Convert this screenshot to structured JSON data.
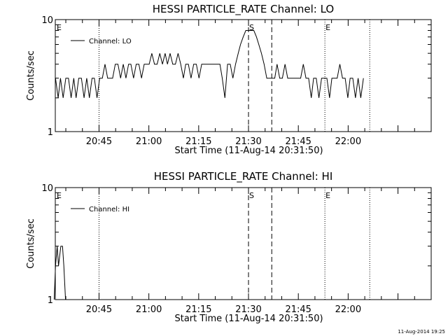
{
  "footer": {
    "timestamp": "11-Aug-2014 19:25"
  },
  "chart_data": [
    {
      "type": "line",
      "title": "HESSI PARTICLE_RATE Channel: LO",
      "xlabel": "Start Time (11-Aug-14 20:31:50)",
      "ylabel": "Counts/sec",
      "y_scale": "log",
      "ylim": [
        1,
        10
      ],
      "y_ticklabels": [
        "1",
        "10"
      ],
      "x_range_minutes": [
        "20:31:50",
        "22:25:00"
      ],
      "x_ticklabels": [
        "20:45",
        "21:00",
        "21:15",
        "21:30",
        "21:45",
        "22:00"
      ],
      "legend": {
        "position": "top-left",
        "entries": [
          "Channel: LO"
        ]
      },
      "markers": [
        {
          "label": "E",
          "time": "20:31:50",
          "style": "none"
        },
        {
          "label": "",
          "time": "20:45:00",
          "style": "dotted"
        },
        {
          "label": "S",
          "time": "21:30:00",
          "style": "dashed"
        },
        {
          "label": "",
          "time": "21:37:00",
          "style": "dashed"
        },
        {
          "label": "E",
          "time": "21:53:00",
          "style": "dotted"
        },
        {
          "label": "",
          "time": "22:06:30",
          "style": "dotted"
        }
      ],
      "series": [
        {
          "name": "Channel: LO",
          "x_minutes_after_2000": [
            31.9,
            32.7,
            33.4,
            34.2,
            35.0,
            35.8,
            36.6,
            37.4,
            38.1,
            38.9,
            39.7,
            40.5,
            41.3,
            42.1,
            42.9,
            43.6,
            44.4,
            45.2,
            46.0,
            46.8,
            47.6,
            48.4,
            49.1,
            49.9,
            50.7,
            51.5,
            52.3,
            53.1,
            53.9,
            54.6,
            55.4,
            56.2,
            57.0,
            57.8,
            58.6,
            59.4,
            60.1,
            60.9,
            61.7,
            62.5,
            63.3,
            64.1,
            64.9,
            65.6,
            66.4,
            67.2,
            68.0,
            68.8,
            69.6,
            70.4,
            71.1,
            71.9,
            72.7,
            73.5,
            74.3,
            75.1,
            75.9,
            76.6,
            77.4,
            78.2,
            79.0,
            79.8,
            80.6,
            81.4,
            82.1,
            82.9,
            83.7,
            84.5,
            85.3,
            86.1,
            86.9,
            87.6,
            88.4,
            89.2,
            90.0,
            90.8,
            91.6,
            92.4,
            93.1,
            93.9,
            94.7,
            95.5,
            96.3,
            97.1,
            97.9,
            98.6,
            99.4,
            100.2,
            101.0,
            101.8,
            102.6,
            103.4,
            104.1,
            104.9,
            105.7,
            106.5,
            107.3,
            108.1,
            108.9,
            109.6,
            110.4,
            111.2,
            112.0,
            112.8,
            113.6,
            114.4,
            115.1,
            115.9,
            116.7,
            117.5,
            118.3,
            119.1,
            119.9,
            120.6,
            121.4,
            122.2,
            123.0,
            123.8,
            124.6
          ],
          "values": [
            3,
            2,
            3,
            2,
            3,
            3,
            2,
            3,
            2,
            3,
            3,
            2,
            3,
            2,
            3,
            3,
            2,
            3,
            3,
            4,
            3,
            3,
            3,
            4,
            4,
            3,
            4,
            3,
            4,
            4,
            3,
            4,
            4,
            3,
            4,
            4,
            4,
            5,
            4,
            4,
            5,
            4,
            5,
            4,
            5,
            4,
            4,
            5,
            4,
            3,
            4,
            4,
            3,
            4,
            4,
            3,
            4,
            4,
            4,
            4,
            4,
            4,
            4,
            4,
            3,
            2,
            4,
            4,
            3,
            4,
            5,
            6,
            7,
            8,
            8,
            8,
            8,
            7,
            6,
            5,
            4,
            3,
            3,
            3,
            3,
            4,
            3,
            3,
            4,
            3,
            3,
            3,
            3,
            3,
            3,
            4,
            3,
            3,
            2,
            3,
            3,
            2,
            3,
            3,
            3,
            2,
            3,
            3,
            3,
            4,
            3,
            3,
            2,
            3,
            3,
            2,
            3,
            2,
            3,
            3,
            3
          ]
        }
      ]
    },
    {
      "type": "line",
      "title": "HESSI PARTICLE_RATE Channel: HI",
      "xlabel": "Start Time (11-Aug-14 20:31:50)",
      "ylabel": "Counts/sec",
      "y_scale": "log",
      "ylim": [
        1,
        10
      ],
      "y_ticklabels": [
        "1",
        "10"
      ],
      "x_range_minutes": [
        "20:31:50",
        "22:25:00"
      ],
      "x_ticklabels": [
        "20:45",
        "21:00",
        "21:15",
        "21:30",
        "21:45",
        "22:00"
      ],
      "legend": {
        "position": "top-left",
        "entries": [
          "Channel: HI"
        ]
      },
      "markers": [
        {
          "label": "E",
          "time": "20:31:50",
          "style": "none"
        },
        {
          "label": "",
          "time": "20:45:00",
          "style": "dotted"
        },
        {
          "label": "S",
          "time": "21:30:00",
          "style": "dashed"
        },
        {
          "label": "",
          "time": "21:37:00",
          "style": "dashed"
        },
        {
          "label": "E",
          "time": "21:53:00",
          "style": "dotted"
        },
        {
          "label": "",
          "time": "22:06:30",
          "style": "dotted"
        }
      ],
      "series": [
        {
          "name": "Channel: HI",
          "x_minutes_after_2000": [
            31.5,
            31.9,
            32.4,
            32.8,
            33.5,
            34.0,
            34.4,
            34.9,
            35.4
          ],
          "values": [
            1,
            2,
            3,
            2,
            3,
            3,
            2,
            1,
            1
          ]
        }
      ]
    }
  ]
}
